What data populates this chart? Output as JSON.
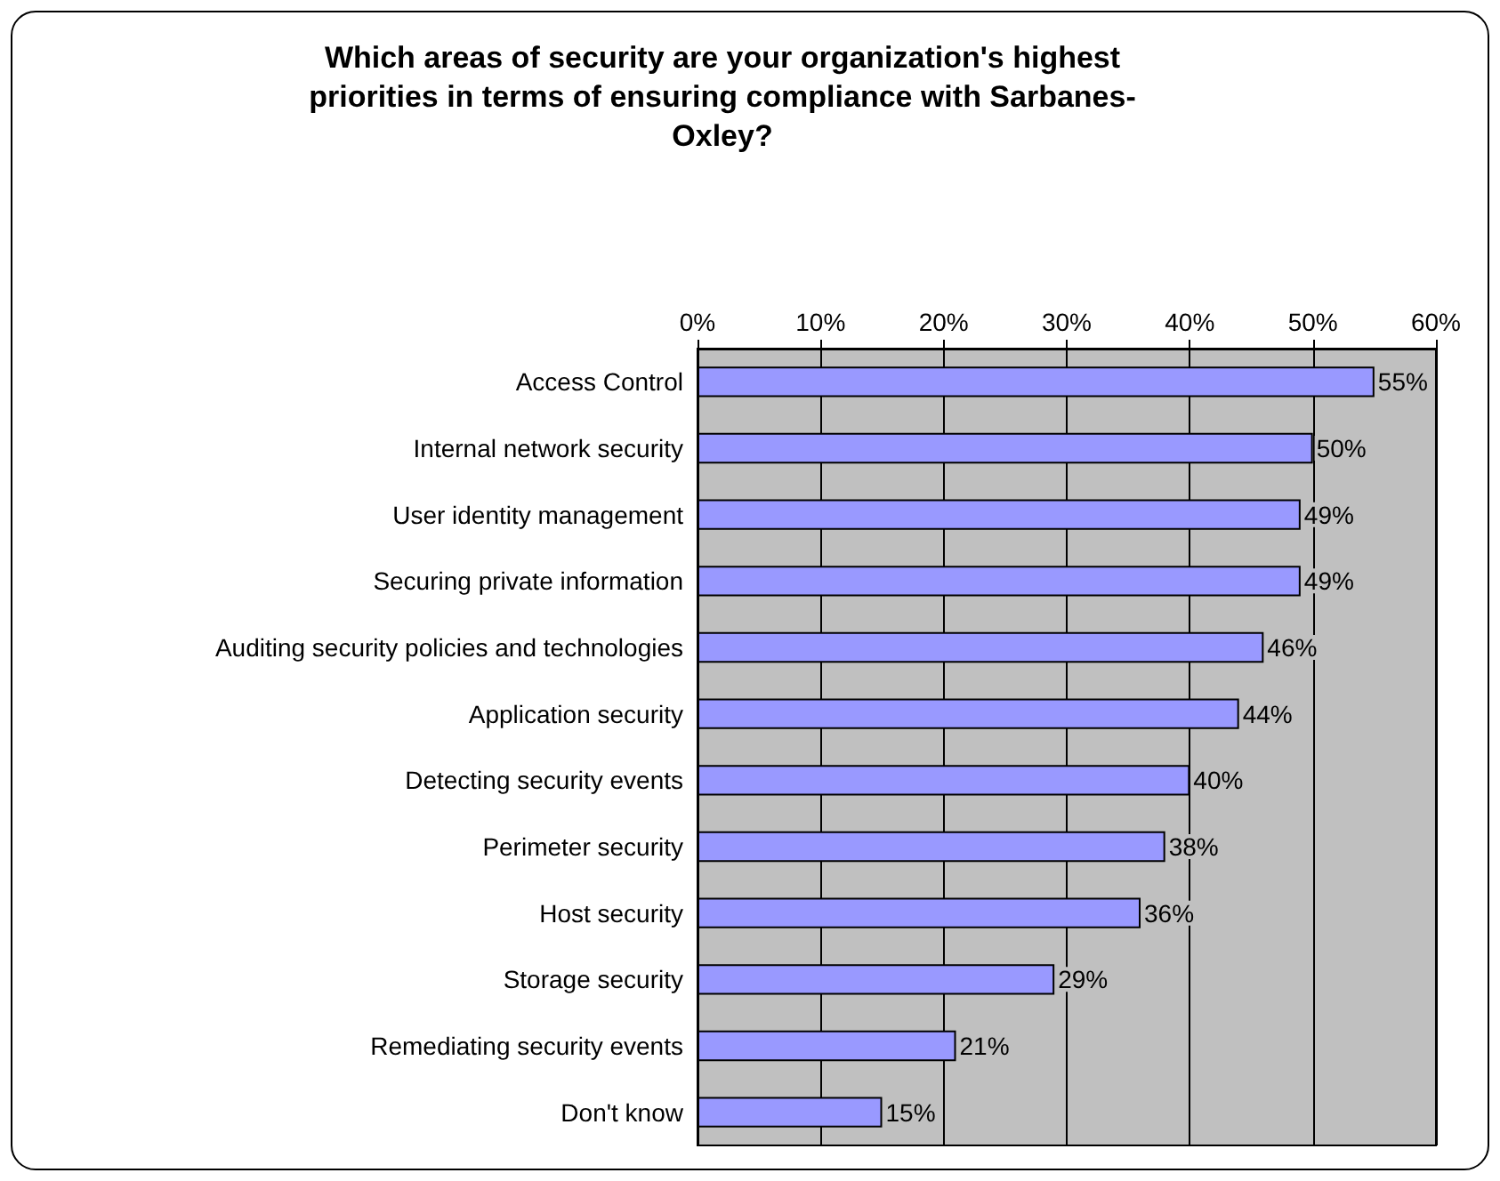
{
  "chart_data": {
    "type": "bar",
    "orientation": "horizontal",
    "title": "Which areas of security are your organization's highest priorities in terms of ensuring compliance with Sarbanes-Oxley?",
    "categories": [
      "Access Control",
      "Internal network security",
      "User identity management",
      "Securing private information",
      "Auditing security policies and technologies",
      "Application security",
      "Detecting security events",
      "Perimeter security",
      "Host security",
      "Storage security",
      "Remediating security events",
      "Don't know"
    ],
    "values": [
      55,
      50,
      49,
      49,
      46,
      44,
      40,
      38,
      36,
      29,
      21,
      15
    ],
    "value_labels": [
      "55%",
      "50%",
      "49%",
      "49%",
      "46%",
      "44%",
      "40%",
      "38%",
      "36%",
      "29%",
      "21%",
      "15%"
    ],
    "color": "#9999ff",
    "xlim": [
      0,
      60
    ],
    "xticks": [
      {
        "value": 0,
        "label": "0%"
      },
      {
        "value": 10,
        "label": "10%"
      },
      {
        "value": 20,
        "label": "20%"
      },
      {
        "value": 30,
        "label": "30%"
      },
      {
        "value": 40,
        "label": "40%"
      },
      {
        "value": 50,
        "label": "50%"
      },
      {
        "value": 60,
        "label": "60%"
      }
    ],
    "grid": "x"
  }
}
